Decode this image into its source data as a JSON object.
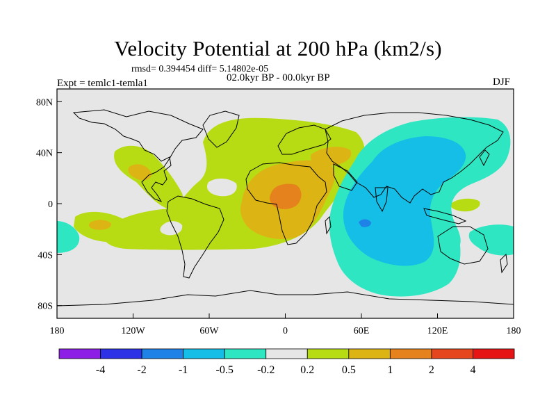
{
  "title": "Velocity Potential at 200 hPa (km2/s)",
  "stats": "rmsd= 0.394454 diff= 5.14802e-05",
  "period": "02.0kyr BP - 00.0kyr BP",
  "experiment": "Expt = temlc1-temla1",
  "season": "DJF",
  "map": {
    "lon_range": [
      -180,
      180
    ],
    "lat_range": [
      -90,
      90
    ],
    "x_ticks": [
      {
        "lon": -180,
        "label": "180"
      },
      {
        "lon": -120,
        "label": "120W"
      },
      {
        "lon": -60,
        "label": "60W"
      },
      {
        "lon": 0,
        "label": "0"
      },
      {
        "lon": 60,
        "label": "60E"
      },
      {
        "lon": 120,
        "label": "120E"
      },
      {
        "lon": 180,
        "label": "180"
      }
    ],
    "y_ticks": [
      {
        "lat": 80,
        "label": "80N"
      },
      {
        "lat": 40,
        "label": "40N"
      },
      {
        "lat": 0,
        "label": "0"
      },
      {
        "lat": -40,
        "label": "40S"
      },
      {
        "lat": -80,
        "label": "80S"
      }
    ]
  },
  "colorbar": {
    "labels": [
      "-4",
      "-2",
      "-1",
      "-0.5",
      "-0.2",
      "0.2",
      "0.5",
      "1",
      "2",
      "4"
    ],
    "colors": [
      "#8c1ee6",
      "#2d32e6",
      "#1e82e6",
      "#14bee6",
      "#2ee6c2",
      "#e6e6e6",
      "#b8dc14",
      "#dcb414",
      "#e6821e",
      "#e6461e",
      "#e61414"
    ]
  },
  "colors": {
    "land_outline": "#000000",
    "background_field": "#e6e6e6"
  }
}
